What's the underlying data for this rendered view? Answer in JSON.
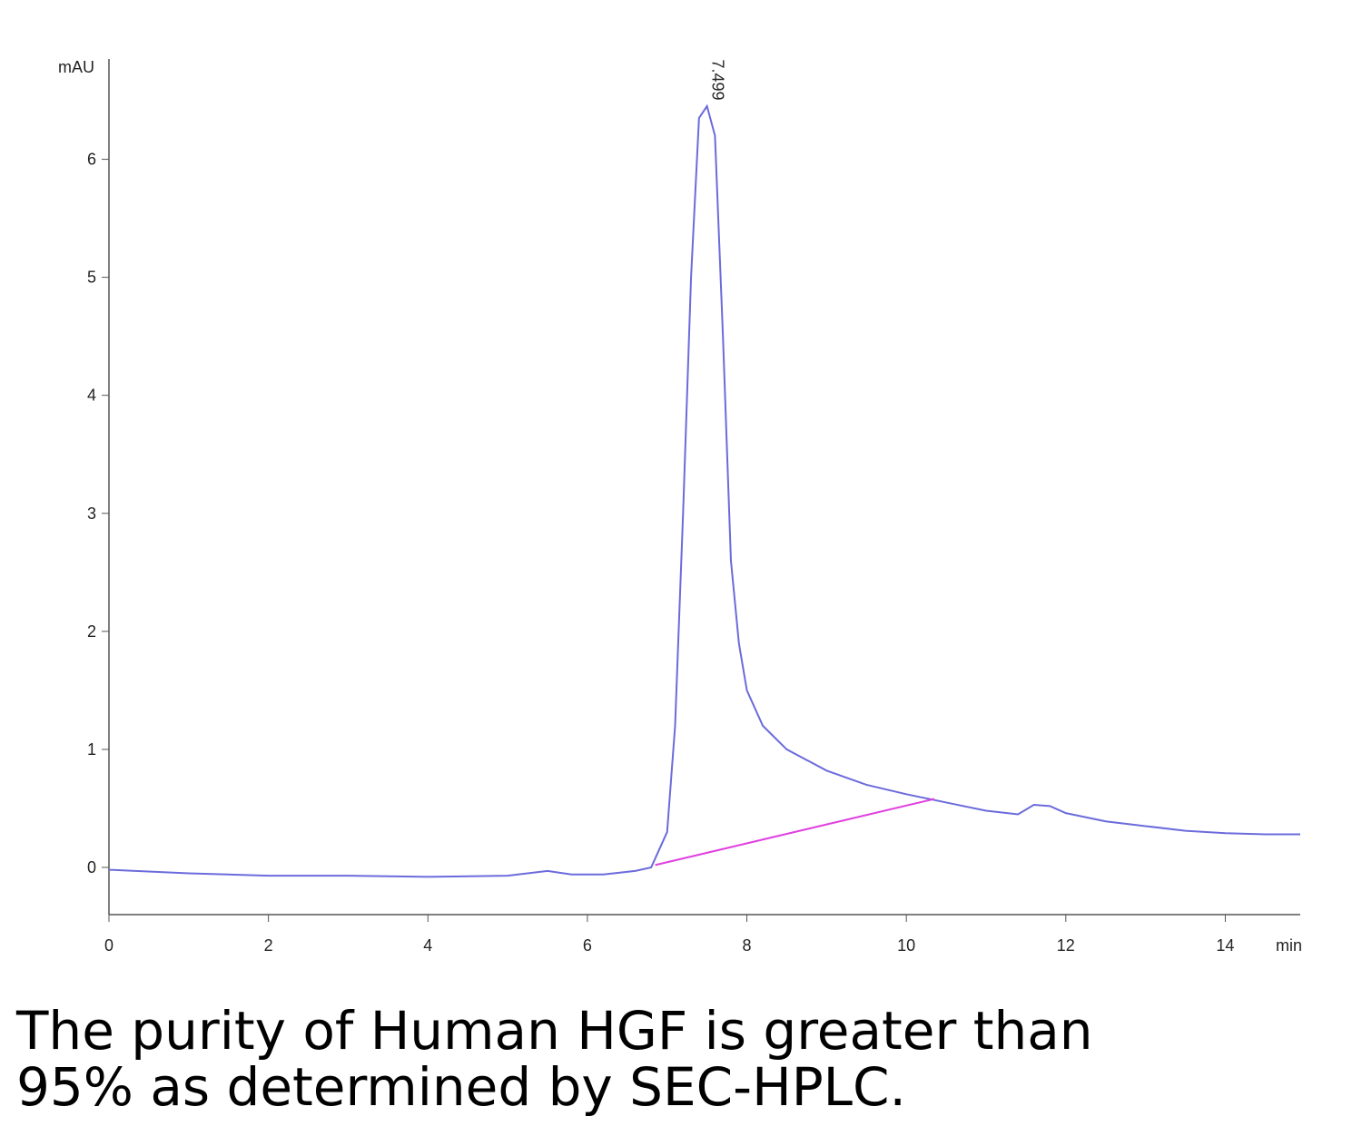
{
  "chart_data": {
    "type": "line",
    "y_label": "mAU",
    "x_label": "min",
    "xlim": [
      0,
      14.94
    ],
    "xticks": [
      0,
      2,
      4,
      6,
      8,
      10,
      12,
      14
    ],
    "ylim": [
      -0.4,
      6.85
    ],
    "yticks": [
      0,
      1,
      2,
      3,
      4,
      5,
      6
    ],
    "series": [
      {
        "color": "#6b6bdc",
        "x": [
          0,
          1,
          2,
          3,
          4,
          5,
          5.5,
          5.8,
          6.2,
          6.6,
          6.8,
          7.0,
          7.1,
          7.2,
          7.3,
          7.4,
          7.5,
          7.6,
          7.7,
          7.8,
          7.9,
          8.0,
          8.2,
          8.5,
          9.0,
          9.5,
          10,
          10.5,
          11,
          11.4,
          11.6,
          11.8,
          12,
          12.5,
          13,
          13.5,
          14,
          14.5,
          14.94
        ],
        "values": [
          -0.02,
          -0.05,
          -0.07,
          -0.07,
          -0.08,
          -0.07,
          -0.03,
          -0.06,
          -0.06,
          -0.03,
          0.0,
          0.3,
          1.2,
          3.0,
          5.0,
          6.35,
          6.45,
          6.2,
          4.5,
          2.6,
          1.9,
          1.5,
          1.2,
          1.0,
          0.82,
          0.7,
          0.62,
          0.55,
          0.48,
          0.45,
          0.53,
          0.52,
          0.46,
          0.39,
          0.35,
          0.31,
          0.29,
          0.28,
          0.28
        ]
      },
      {
        "color": "#e040e0",
        "x": [
          6.85,
          10.35
        ],
        "values": [
          0.02,
          0.58
        ]
      }
    ],
    "annotations": [
      {
        "text": "7.499",
        "x": 7.499,
        "y": 6.5
      }
    ],
    "caption": [
      "The purity of Human HGF is greater than",
      "95% as determined by SEC-HPLC."
    ]
  }
}
